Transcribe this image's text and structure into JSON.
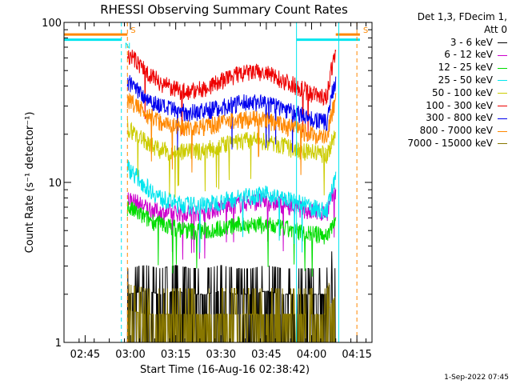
{
  "chart_data": {
    "type": "line",
    "title": "RHESSI Observing Summary Count Rates",
    "xlabel": "Start Time (16-Aug-16 02:38:42)",
    "ylabel": "Count Rate (s⁻¹ detector⁻¹)",
    "yscale": "log",
    "ylim": [
      1,
      100
    ],
    "y_ticks": [
      1,
      10,
      100
    ],
    "y_tick_labels": [
      "1",
      "10",
      "100"
    ],
    "xlim": [
      "02:38",
      "04:20"
    ],
    "x_ticks": [
      "02:45",
      "03:00",
      "03:15",
      "03:30",
      "03:45",
      "04:00",
      "04:15"
    ],
    "legend_header": [
      "Det 1,3, FDecim 1,",
      "Att 0"
    ],
    "legend_position": "right-top",
    "series": [
      {
        "name": "3 - 6 keV",
        "color": "#000000",
        "x": [
          "02:59",
          "03:05",
          "03:10",
          "03:15",
          "03:20",
          "03:25",
          "03:30",
          "03:35",
          "03:40",
          "03:45",
          "03:50",
          "03:55",
          "04:00",
          "04:05",
          "04:08"
        ],
        "y": [
          2.0,
          2.1,
          2.0,
          2.1,
          2.0,
          2.0,
          2.1,
          2.0,
          2.0,
          2.1,
          2.0,
          2.0,
          2.0,
          2.0,
          3.0
        ]
      },
      {
        "name": "6 - 12 keV",
        "color": "#cc00cc",
        "x": [
          "02:59",
          "03:05",
          "03:10",
          "03:15",
          "03:20",
          "03:25",
          "03:30",
          "03:35",
          "03:40",
          "03:45",
          "03:50",
          "03:55",
          "04:00",
          "04:05",
          "04:08"
        ],
        "y": [
          8.0,
          7.0,
          6.5,
          6.5,
          6.5,
          6.6,
          7.0,
          7.3,
          7.6,
          7.6,
          7.3,
          7.0,
          6.6,
          6.4,
          9.0
        ]
      },
      {
        "name": "12 - 25 keV",
        "color": "#00dd00",
        "x": [
          "02:59",
          "03:05",
          "03:10",
          "03:15",
          "03:20",
          "03:25",
          "03:30",
          "03:35",
          "03:40",
          "03:45",
          "03:50",
          "03:55",
          "04:00",
          "04:05",
          "04:08"
        ],
        "y": [
          7.0,
          6.0,
          5.5,
          5.2,
          5.0,
          5.0,
          5.2,
          5.4,
          5.5,
          5.4,
          5.2,
          5.0,
          4.8,
          4.6,
          6.0
        ]
      },
      {
        "name": "25 - 50 keV",
        "color": "#00e5ee",
        "x": [
          "02:59",
          "03:05",
          "03:10",
          "03:15",
          "03:20",
          "03:25",
          "03:30",
          "03:35",
          "03:40",
          "03:45",
          "03:50",
          "03:55",
          "04:00",
          "04:05",
          "04:08"
        ],
        "y": [
          12.5,
          9.5,
          8.0,
          7.4,
          7.2,
          7.3,
          7.6,
          8.0,
          8.3,
          8.4,
          8.0,
          7.5,
          7.0,
          6.6,
          10.5
        ]
      },
      {
        "name": "50 - 100 keV",
        "color": "#cccc00",
        "x": [
          "02:59",
          "03:05",
          "03:10",
          "03:15",
          "03:20",
          "03:25",
          "03:30",
          "03:35",
          "03:40",
          "03:45",
          "03:50",
          "03:55",
          "04:00",
          "04:05",
          "04:08"
        ],
        "y": [
          22,
          18,
          16,
          15.5,
          15.5,
          16,
          17,
          18,
          18.5,
          18,
          17,
          16,
          15.5,
          15,
          20
        ]
      },
      {
        "name": "100 - 300 keV",
        "color": "#ee0000",
        "x": [
          "02:59",
          "03:05",
          "03:10",
          "03:15",
          "03:20",
          "03:25",
          "03:30",
          "03:35",
          "03:40",
          "03:45",
          "03:50",
          "03:55",
          "04:00",
          "04:05",
          "04:08"
        ],
        "y": [
          64,
          50,
          42,
          38,
          37,
          39,
          43,
          47,
          49,
          48,
          44,
          40,
          36,
          34,
          65
        ]
      },
      {
        "name": "300 - 800 keV",
        "color": "#0000ee",
        "x": [
          "02:59",
          "03:05",
          "03:10",
          "03:15",
          "03:20",
          "03:25",
          "03:30",
          "03:35",
          "03:40",
          "03:45",
          "03:50",
          "03:55",
          "04:00",
          "04:05",
          "04:08"
        ],
        "y": [
          43,
          34,
          30,
          28,
          27.5,
          28,
          29.5,
          31,
          32,
          31.5,
          29.5,
          27,
          25,
          23.5,
          44
        ]
      },
      {
        "name": "800 - 7000 keV",
        "color": "#ff8800",
        "x": [
          "02:59",
          "03:05",
          "03:10",
          "03:15",
          "03:20",
          "03:25",
          "03:30",
          "03:35",
          "03:40",
          "03:45",
          "03:50",
          "03:55",
          "04:00",
          "04:05",
          "04:08"
        ],
        "y": [
          33,
          27,
          24,
          22.5,
          22,
          22.5,
          23.5,
          24.5,
          25,
          24.5,
          23,
          21.5,
          20,
          19,
          33
        ]
      },
      {
        "name": "7000 - 15000 keV",
        "color": "#887700",
        "x": [
          "02:59",
          "03:05",
          "03:10",
          "03:15",
          "03:20",
          "03:25",
          "03:30",
          "03:35",
          "03:40",
          "03:45",
          "03:50",
          "03:55",
          "04:00",
          "04:05",
          "04:08"
        ],
        "y": [
          1.6,
          1.5,
          1.5,
          1.5,
          1.5,
          1.5,
          1.5,
          1.5,
          1.5,
          1.5,
          1.5,
          1.5,
          1.5,
          1.5,
          2.0
        ]
      }
    ],
    "flag_lines": [
      {
        "label": "S",
        "color": "#ff8800",
        "x_from": "02:38",
        "x_to": "02:59",
        "y": 84
      },
      {
        "label": "S",
        "color": "#ff8800",
        "x_from": "04:08",
        "x_to": "04:16",
        "y": 84
      },
      {
        "label": "N",
        "color": "#00e5ee",
        "x_from": "02:38",
        "x_to": "02:57",
        "y": 78
      },
      {
        "label": "",
        "color": "#00e5ee",
        "x_from": "03:55",
        "x_to": "04:16",
        "y": 78
      }
    ],
    "markers": [
      {
        "x": "02:57",
        "color": "#00e5ee",
        "style": "dashed"
      },
      {
        "x": "02:59",
        "color": "#ff8800",
        "style": "dashed"
      },
      {
        "x": "03:55",
        "color": "#00e5ee",
        "style": "solid"
      },
      {
        "x": "04:09",
        "color": "#00e5ee",
        "style": "solid"
      },
      {
        "x": "04:15",
        "color": "#ff8800",
        "style": "dashed"
      }
    ]
  },
  "footer": "1-Sep-2022 07:45"
}
